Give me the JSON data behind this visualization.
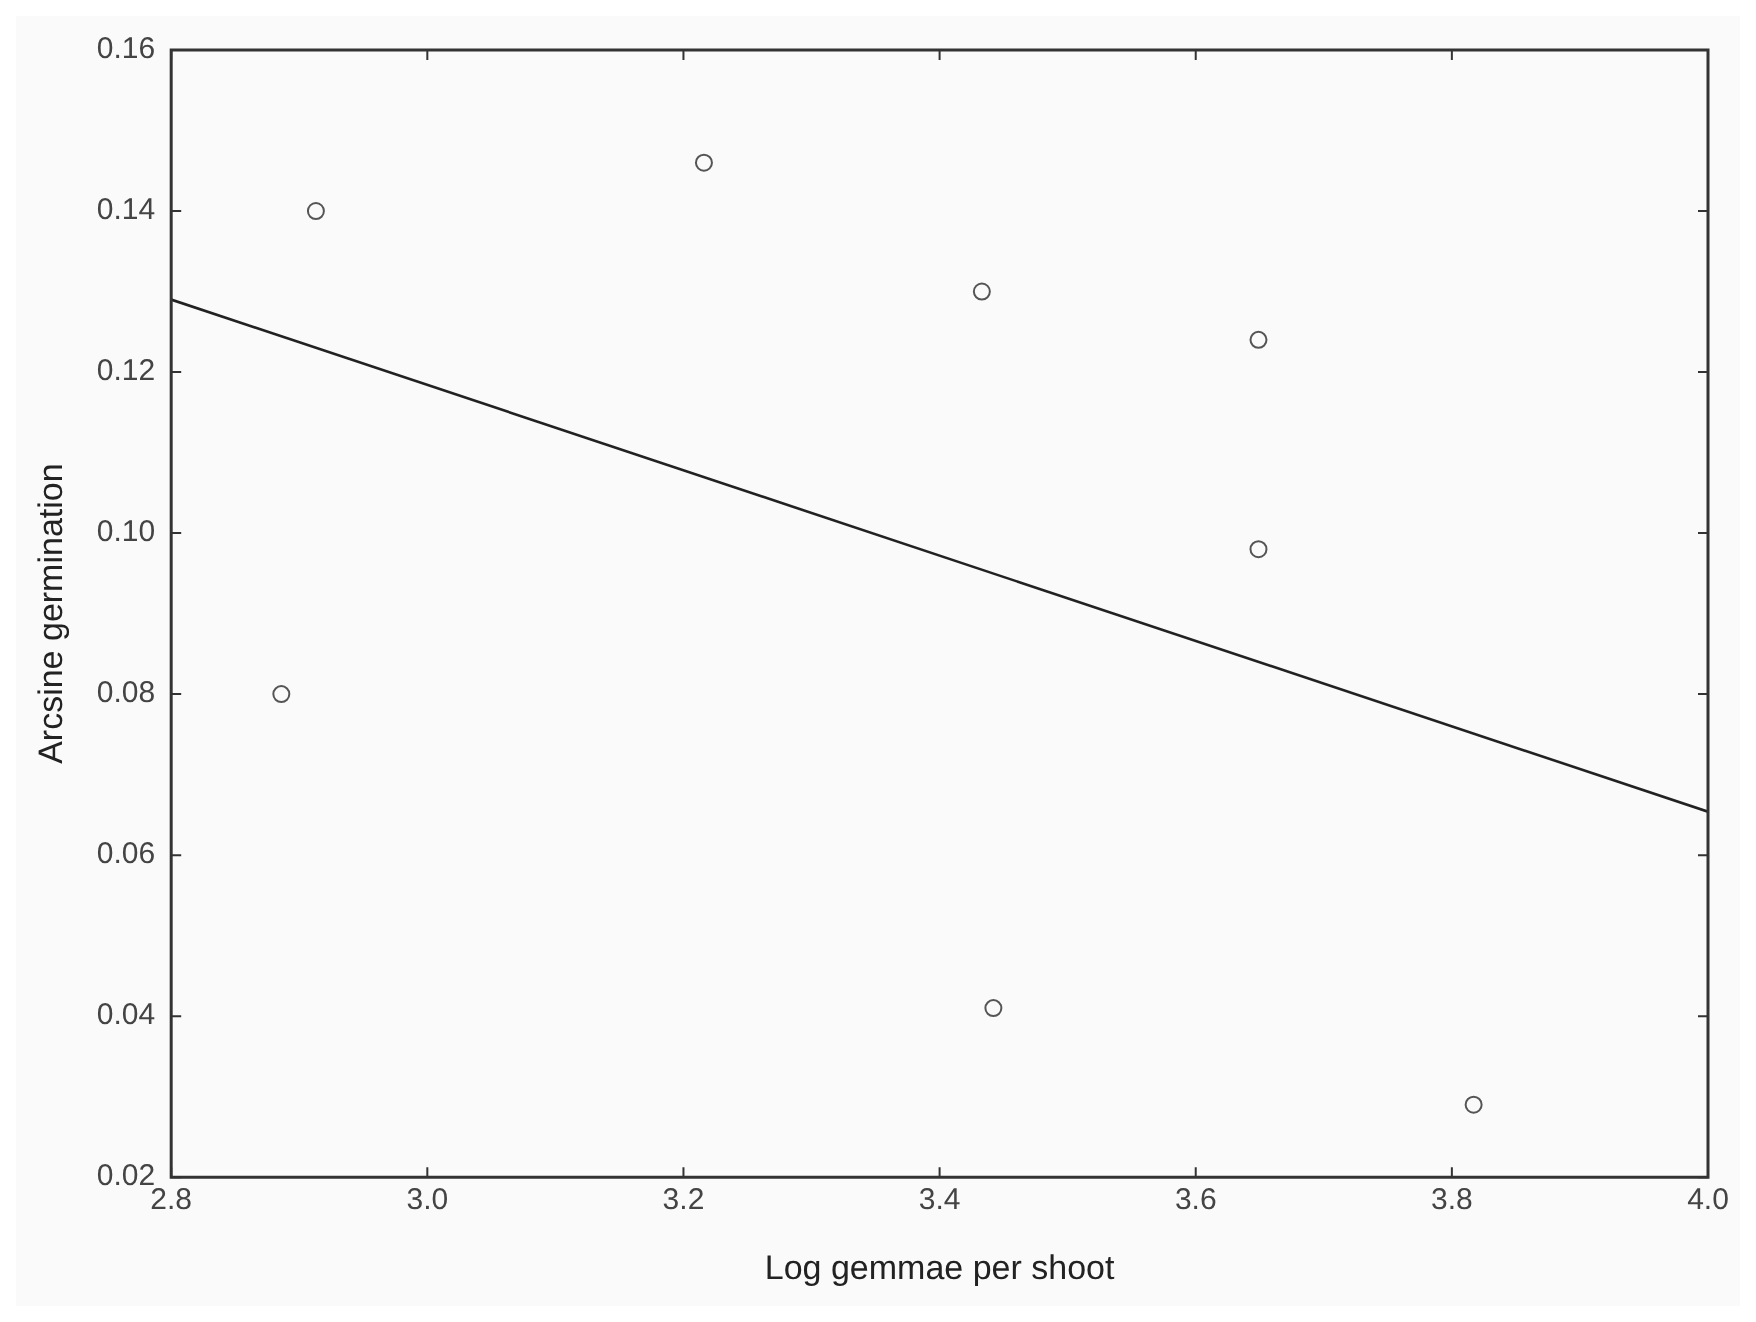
{
  "chart_data": {
    "type": "scatter",
    "xlabel": "Log gemmae per shoot",
    "ylabel": "Arcsine germination",
    "series": [
      {
        "type": "scatter",
        "marker": "circle",
        "color": "#555555",
        "x": [
          2.913,
          3.216,
          2.886,
          3.433,
          3.649,
          3.649,
          3.442,
          3.817
        ],
        "values": [
          0.14,
          0.146,
          0.08,
          0.13,
          0.124,
          0.098,
          0.041,
          0.029
        ]
      },
      {
        "type": "line",
        "marker": "none",
        "color": "#222222",
        "x": [
          2.8,
          4.0
        ],
        "values": [
          0.129,
          0.0654
        ]
      }
    ],
    "xlim": [
      2.8,
      4.0
    ],
    "xticks": [
      2.8,
      {
        "value": 3.0,
        "label": "3.0"
      },
      3.2,
      3.4,
      3.6,
      3.8,
      {
        "value": 4.0,
        "label": "4.0"
      }
    ],
    "ylim": [
      0.02,
      0.16
    ],
    "yticks": [
      0.02,
      0.04,
      0.06,
      0.08,
      {
        "value": 0.1,
        "label": "0.10"
      },
      0.12,
      0.14,
      0.16
    ],
    "grid": false,
    "legend": false
  }
}
